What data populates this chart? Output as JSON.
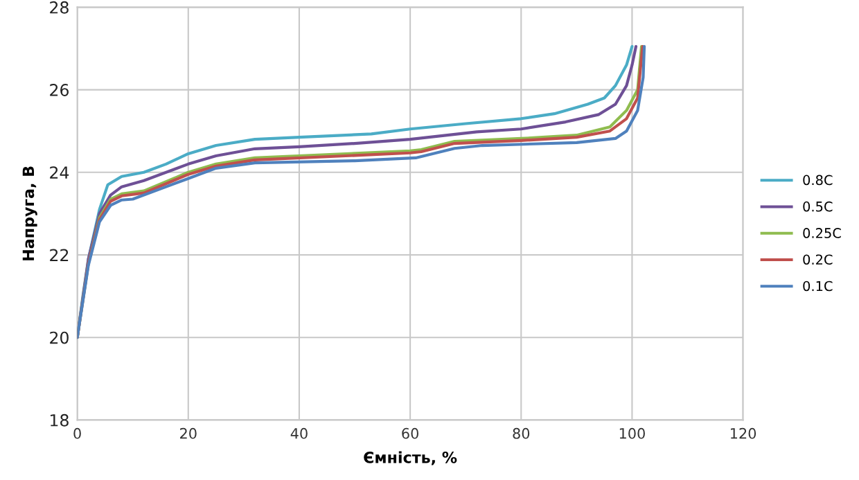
{
  "chart_data": {
    "type": "line",
    "xlabel": "Ємність, %",
    "ylabel": "Напруга, В",
    "xlim": [
      0,
      120
    ],
    "ylim": [
      18,
      28
    ],
    "xticks": [
      0,
      20,
      40,
      60,
      80,
      100,
      120
    ],
    "yticks": [
      18,
      20,
      22,
      24,
      26,
      28
    ],
    "grid": true,
    "legend": "right",
    "marker": "none",
    "line_style": "solid",
    "series": [
      {
        "name": "0.8C",
        "color": "#4bacc6",
        "x": [
          0,
          1,
          2,
          4,
          5.5,
          8,
          12,
          16,
          20,
          25,
          32,
          40,
          53,
          60,
          70,
          80,
          86,
          92,
          95,
          97,
          99,
          100
        ],
        "values": [
          20,
          21,
          21.9,
          23.1,
          23.7,
          23.9,
          24.0,
          24.2,
          24.45,
          24.65,
          24.8,
          24.85,
          24.93,
          25.05,
          25.18,
          25.3,
          25.42,
          25.65,
          25.8,
          26.1,
          26.6,
          27.05
        ]
      },
      {
        "name": "0.5C",
        "color": "#6e5096",
        "x": [
          0,
          2,
          4,
          6,
          8,
          12,
          20,
          25,
          32,
          40,
          50,
          60,
          72,
          80,
          88,
          94,
          97,
          99,
          100,
          100.7
        ],
        "values": [
          20,
          21.9,
          23.0,
          23.45,
          23.65,
          23.8,
          24.2,
          24.4,
          24.57,
          24.62,
          24.7,
          24.8,
          24.98,
          25.05,
          25.22,
          25.4,
          25.65,
          26.1,
          26.6,
          27.05
        ]
      },
      {
        "name": "0.25C",
        "color": "#8fbc4f",
        "x": [
          0,
          2,
          4,
          6,
          8,
          12,
          20,
          25,
          32,
          60,
          62,
          68,
          80,
          90,
          96,
          99,
          101,
          101.7
        ],
        "values": [
          20,
          21.8,
          22.9,
          23.35,
          23.48,
          23.55,
          24.0,
          24.2,
          24.35,
          24.52,
          24.55,
          24.75,
          24.82,
          24.9,
          25.1,
          25.5,
          26.0,
          27.05
        ]
      },
      {
        "name": "0.2C",
        "color": "#c0504d",
        "x": [
          0,
          2,
          4,
          6,
          8,
          12,
          20,
          25,
          32,
          60,
          62,
          68,
          80,
          90,
          96,
          99,
          101,
          101.9
        ],
        "values": [
          20,
          21.8,
          22.85,
          23.3,
          23.43,
          23.5,
          23.95,
          24.15,
          24.3,
          24.47,
          24.5,
          24.7,
          24.77,
          24.85,
          25.0,
          25.3,
          25.8,
          27.05
        ]
      },
      {
        "name": "0.1C",
        "color": "#4f81bd",
        "x": [
          0,
          2,
          4,
          6,
          8,
          10,
          15,
          20,
          25,
          32,
          50,
          61,
          68,
          73,
          90,
          97,
          99,
          101,
          102,
          102.2
        ],
        "values": [
          20,
          21.75,
          22.8,
          23.2,
          23.33,
          23.35,
          23.6,
          23.85,
          24.1,
          24.23,
          24.28,
          24.35,
          24.58,
          24.65,
          24.72,
          24.82,
          25.0,
          25.5,
          26.3,
          27.05
        ]
      }
    ]
  }
}
